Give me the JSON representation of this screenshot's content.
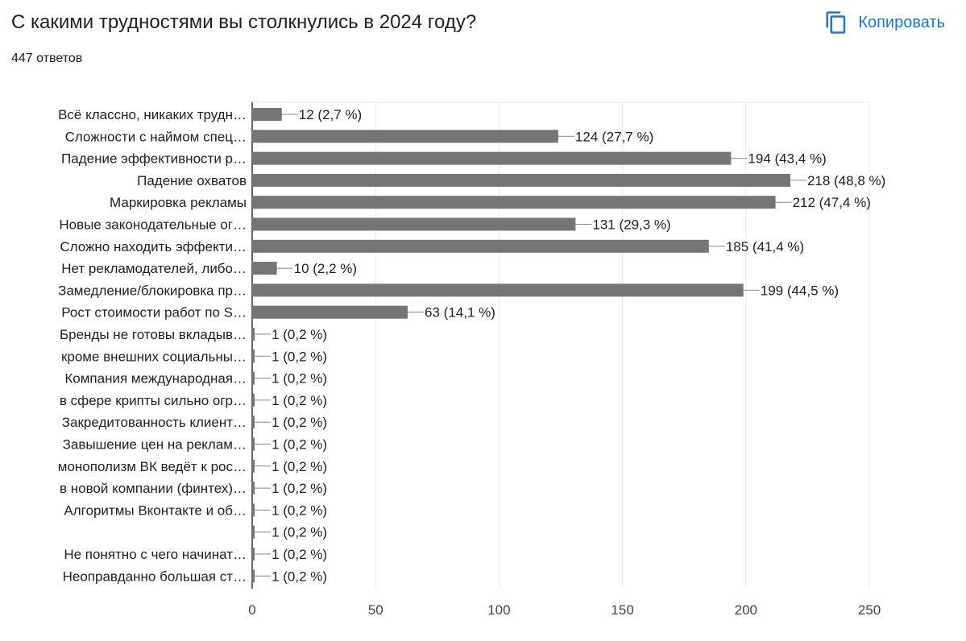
{
  "header": {
    "title": "С какими трудностями вы столкнулись в 2024 году?",
    "responses": "447 ответов",
    "copy_label": "Копировать",
    "copy_icon": "copy-icon"
  },
  "colors": {
    "bar": "#757575",
    "accent": "#1a73e8",
    "grid": "#e8e8e8"
  },
  "chart_data": {
    "type": "bar",
    "orientation": "horizontal",
    "title": "",
    "xlabel": "",
    "ylabel": "",
    "xlim": [
      0,
      250
    ],
    "xticks": [
      0,
      50,
      100,
      150,
      200,
      250
    ],
    "grid": true,
    "categories": [
      "Всё классно, никаких трудн…",
      "Сложности с наймом спец…",
      "Падение эффективности р…",
      "Падение охватов",
      "Маркировка рекламы",
      "Новые законодательные ог…",
      "Сложно находить эффекти…",
      "Нет рекламодателей, либо…",
      "Замедление/блокировка пр…",
      "Рост стоимости работ по S…",
      "Бренды не готовы вкладыв…",
      "кроме внешних социальны…",
      "Компания международная…",
      "в сфере крипты сильно огр…",
      "Закредитованность клиент…",
      "Завышение цен на реклам…",
      "монополизм ВК ведёт к рос…",
      "в новой компании (финтех)…",
      "Алгоритмы Вконтакте и об…",
      "",
      "Не понятно с чего начинат…",
      "Неоправданно большая ст…"
    ],
    "values": [
      12,
      124,
      194,
      218,
      212,
      131,
      185,
      10,
      199,
      63,
      1,
      1,
      1,
      1,
      1,
      1,
      1,
      1,
      1,
      1,
      1,
      1
    ],
    "data_labels": [
      "12 (2,7 %)",
      "124 (27,7 %)",
      "194 (43,4 %)",
      "218 (48,8 %)",
      "212 (47,4 %)",
      "131 (29,3 %)",
      "185 (41,4 %)",
      "10 (2,2 %)",
      "199 (44,5 %)",
      "63 (14,1 %)",
      "1 (0,2 %)",
      "1 (0,2 %)",
      "1 (0,2 %)",
      "1 (0,2 %)",
      "1 (0,2 %)",
      "1 (0,2 %)",
      "1 (0,2 %)",
      "1 (0,2 %)",
      "1 (0,2 %)",
      "1 (0,2 %)",
      "1 (0,2 %)",
      "1 (0,2 %)"
    ]
  }
}
